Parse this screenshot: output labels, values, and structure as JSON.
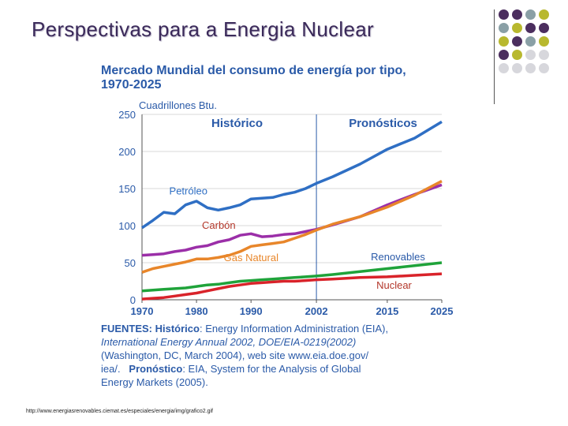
{
  "slide_title": "Perspectivas para a Energia Nuclear",
  "footer_url": "http://www.energiasrenovables.ciemat.es/especiales/energia/img/grafico2.gif",
  "colors": {
    "title": "#3b2a5a",
    "chart_text": "#2a5aa8",
    "petroleo": "#2f6fc4",
    "carbon": "#9b2fa8",
    "gas": "#e8862a",
    "renovables": "#1fa33a",
    "nuclear": "#d9232a"
  },
  "decor_dots": [
    [
      "#4b2e5e",
      "#4b2e5e",
      "#8aa0a6",
      "#b8b82e"
    ],
    [
      "#8aa0a6",
      "#b8b82e",
      "#4b2e5e",
      "#4b2e5e"
    ],
    [
      "#b8b82e",
      "#4b2e5e",
      "#8aa0a6",
      "#b8b82e"
    ],
    [
      "#4b2e5e",
      "#b8b82e",
      "#d7d7dc",
      "#d7d7dc"
    ],
    [
      "#d7d7dc",
      "#d7d7dc",
      "#d7d7dc",
      "#d7d7dc"
    ]
  ],
  "chart_data": {
    "type": "line",
    "title": "Mercado Mundial del consumo de energía por tipo, 1970-2025",
    "ylabel": "Cuadrillones Btu.",
    "ylim": [
      0,
      250
    ],
    "xlim": [
      1970,
      2025
    ],
    "x_ticks": [
      "1970",
      "1980",
      "1990",
      "2002",
      "2015",
      "2025"
    ],
    "y_ticks": [
      "0",
      "50",
      "100",
      "150",
      "200",
      "250"
    ],
    "regions": [
      "Histórico",
      "Pronósticos"
    ],
    "divider_x": 2002,
    "x": [
      1970,
      1972,
      1974,
      1976,
      1978,
      1980,
      1982,
      1984,
      1986,
      1988,
      1990,
      1992,
      1994,
      1996,
      1998,
      2000,
      2002,
      2005,
      2010,
      2015,
      2020,
      2025
    ],
    "series": [
      {
        "name": "Petróleo",
        "color_key": "petroleo",
        "values": [
          97,
          107,
          118,
          116,
          128,
          133,
          124,
          121,
          124,
          128,
          136,
          137,
          138,
          142,
          145,
          150,
          157,
          166,
          183,
          203,
          218,
          240
        ]
      },
      {
        "name": "Carbón",
        "color_key": "carbon",
        "values": [
          60,
          61,
          62,
          65,
          67,
          71,
          73,
          78,
          81,
          87,
          89,
          85,
          86,
          88,
          89,
          92,
          95,
          101,
          112,
          128,
          142,
          155
        ]
      },
      {
        "name": "Gas Natural",
        "color_key": "gas",
        "values": [
          37,
          42,
          45,
          48,
          51,
          55,
          55,
          57,
          60,
          65,
          72,
          74,
          76,
          78,
          83,
          88,
          94,
          102,
          112,
          125,
          141,
          160
        ]
      },
      {
        "name": "Renovables",
        "color_key": "renovables",
        "values": [
          12,
          13,
          14,
          15,
          16,
          18,
          20,
          21,
          23,
          25,
          26,
          27,
          28,
          29,
          30,
          31,
          32,
          34,
          38,
          42,
          46,
          50
        ]
      },
      {
        "name": "Nuclear",
        "color_key": "nuclear",
        "values": [
          1,
          2,
          3,
          5,
          7,
          9,
          12,
          15,
          18,
          20,
          22,
          23,
          24,
          25,
          25,
          26,
          27,
          28,
          30,
          31,
          33,
          35
        ]
      }
    ],
    "sources_label": "FUENTES:",
    "sources_hist_label": "Histórico",
    "sources_hist_text_1": ": Energy Information Administration (EIA),",
    "sources_hist_text_2": "International Energy Annual 2002, DOE/EIA-0219(2002)",
    "sources_hist_text_3": "(Washington, DC, March 2004), web site www.eia.doe.gov/",
    "sources_hist_text_4": "iea/.",
    "sources_pron_label": "Pronóstico",
    "sources_pron_text_1": ": EIA, System for the Analysis of Global",
    "sources_pron_text_2": "Energy Markets (2005)."
  }
}
